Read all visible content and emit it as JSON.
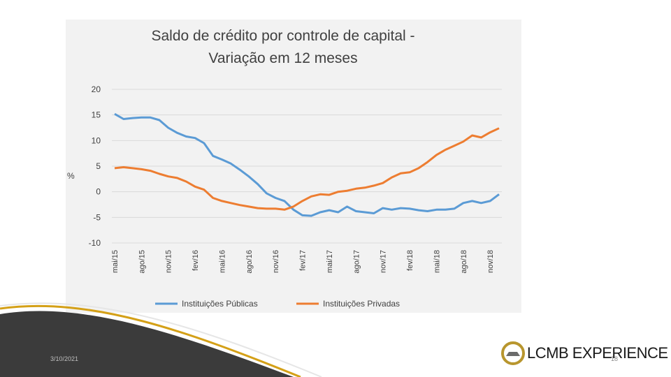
{
  "chart_data": {
    "type": "line",
    "title_lines": [
      "Saldo de crédito por controle de capital -",
      "Variação em 12 meses"
    ],
    "ylabel": "%",
    "ylim": [
      -10,
      20
    ],
    "yticks": [
      20,
      15,
      10,
      5,
      0,
      -5,
      -10
    ],
    "x_tick_labels": [
      "mai/15",
      "ago/15",
      "nov/15",
      "fev/16",
      "mai/16",
      "ago/16",
      "nov/16",
      "fev/17",
      "mai/17",
      "ago/17",
      "nov/17",
      "fev/18",
      "mai/18",
      "ago/18",
      "nov/18"
    ],
    "x_months": [
      "mai/15",
      "jun/15",
      "jul/15",
      "ago/15",
      "set/15",
      "out/15",
      "nov/15",
      "dez/15",
      "jan/16",
      "fev/16",
      "mar/16",
      "abr/16",
      "mai/16",
      "jun/16",
      "jul/16",
      "ago/16",
      "set/16",
      "out/16",
      "nov/16",
      "dez/16",
      "jan/17",
      "fev/17",
      "mar/17",
      "abr/17",
      "mai/17",
      "jun/17",
      "jul/17",
      "ago/17",
      "set/17",
      "out/17",
      "nov/17",
      "dez/17",
      "jan/18",
      "fev/18",
      "mar/18",
      "abr/18",
      "mai/18",
      "jun/18",
      "jul/18",
      "ago/18",
      "set/18",
      "out/18",
      "nov/18",
      "dez/18"
    ],
    "series": [
      {
        "name": "Instituições Públicas",
        "color": "#5b9bd5",
        "values": [
          15.2,
          14.2,
          14.4,
          14.5,
          14.5,
          14.0,
          12.5,
          11.5,
          10.8,
          10.5,
          9.5,
          7.0,
          6.3,
          5.5,
          4.3,
          3.0,
          1.5,
          -0.3,
          -1.2,
          -1.8,
          -3.5,
          -4.6,
          -4.7,
          -4.0,
          -3.6,
          -4.0,
          -2.9,
          -3.8,
          -4.0,
          -4.2,
          -3.2,
          -3.5,
          -3.2,
          -3.3,
          -3.6,
          -3.8,
          -3.5,
          -3.5,
          -3.3,
          -2.2,
          -1.8,
          -2.2,
          -1.8,
          -0.5
        ]
      },
      {
        "name": "Instituições Privadas",
        "color": "#ed7d31",
        "values": [
          4.6,
          4.8,
          4.6,
          4.4,
          4.1,
          3.5,
          3.0,
          2.7,
          2.0,
          1.0,
          0.4,
          -1.2,
          -1.8,
          -2.2,
          -2.6,
          -2.9,
          -3.2,
          -3.3,
          -3.3,
          -3.5,
          -2.9,
          -1.8,
          -0.9,
          -0.5,
          -0.6,
          0.0,
          0.2,
          0.6,
          0.8,
          1.2,
          1.7,
          2.8,
          3.6,
          3.8,
          4.6,
          5.8,
          7.2,
          8.2,
          9.0,
          9.8,
          11.0,
          10.6,
          11.6,
          12.4
        ]
      }
    ],
    "grid": true,
    "legend_position": "bottom"
  },
  "footer": {
    "date": "3/10/2021",
    "slide_number": "18",
    "logo_text": "LCMB EXPERIENCE"
  },
  "colors": {
    "footer_dark": "#3b3b3b",
    "footer_accent": "#d4a017"
  }
}
